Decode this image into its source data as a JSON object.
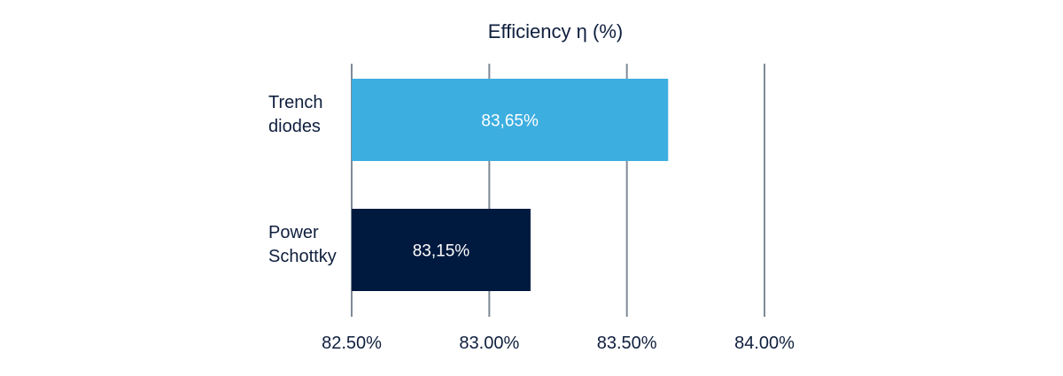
{
  "chart_data": {
    "type": "bar",
    "orientation": "horizontal",
    "title": "Efficiency η (%)",
    "categories": [
      "Trench diodes",
      "Power Schottky"
    ],
    "category_lines": [
      [
        "Trench",
        "diodes"
      ],
      [
        "Power",
        "Schottky"
      ]
    ],
    "values": [
      83.65,
      83.15
    ],
    "data_labels": [
      "83,65%",
      "83,15%"
    ],
    "bar_colors": [
      "#3daee0",
      "#001a3f"
    ],
    "data_label_color": "#ffffff",
    "xlim": [
      82.5,
      84.0
    ],
    "xticks": [
      82.5,
      83.0,
      83.5,
      84.0
    ],
    "xtick_labels": [
      "82.50%",
      "83.00%",
      "83.50%",
      "84.00%"
    ],
    "grid": "vertical",
    "grid_color": "#7f8a96",
    "text_color": "#0f1f3d",
    "xlabel": "",
    "ylabel": ""
  }
}
